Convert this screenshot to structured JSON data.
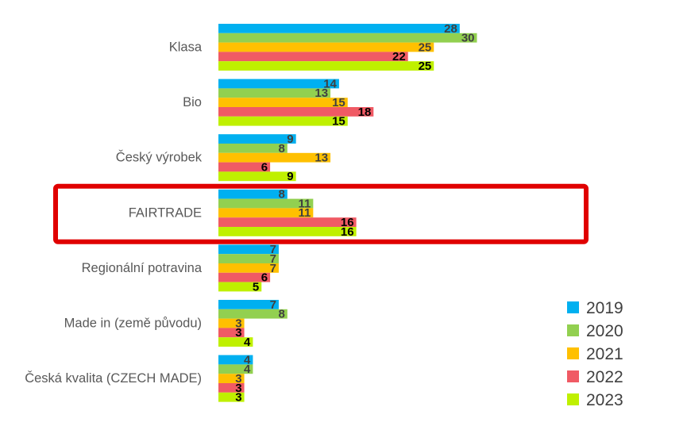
{
  "chart_data": {
    "type": "bar",
    "orientation": "horizontal",
    "categories": [
      "Klasa",
      "Bio",
      "Český výrobek",
      "FAIRTRADE",
      "Regionální potravina",
      "Made in (země původu)",
      "Česká kvalita (CZECH MADE)"
    ],
    "series": [
      {
        "name": "2019",
        "color": "#00B0F0",
        "values": [
          28,
          14,
          9,
          8,
          7,
          7,
          4
        ]
      },
      {
        "name": "2020",
        "color": "#92D050",
        "values": [
          30,
          13,
          8,
          11,
          7,
          8,
          4
        ]
      },
      {
        "name": "2021",
        "color": "#FFC000",
        "values": [
          25,
          15,
          13,
          11,
          7,
          3,
          3
        ]
      },
      {
        "name": "2022",
        "color": "#F05A64",
        "values": [
          22,
          18,
          6,
          16,
          6,
          3,
          3
        ]
      },
      {
        "name": "2023",
        "color": "#BFF000",
        "values": [
          25,
          15,
          9,
          16,
          5,
          4,
          3
        ]
      }
    ],
    "title": "",
    "xlabel": "",
    "ylabel": "",
    "xlim": [
      0,
      30
    ],
    "grid": false,
    "legend_position": "bottom-right",
    "data_labels": true,
    "highlight": {
      "category": "FAIRTRADE",
      "color": "#E00000"
    }
  }
}
